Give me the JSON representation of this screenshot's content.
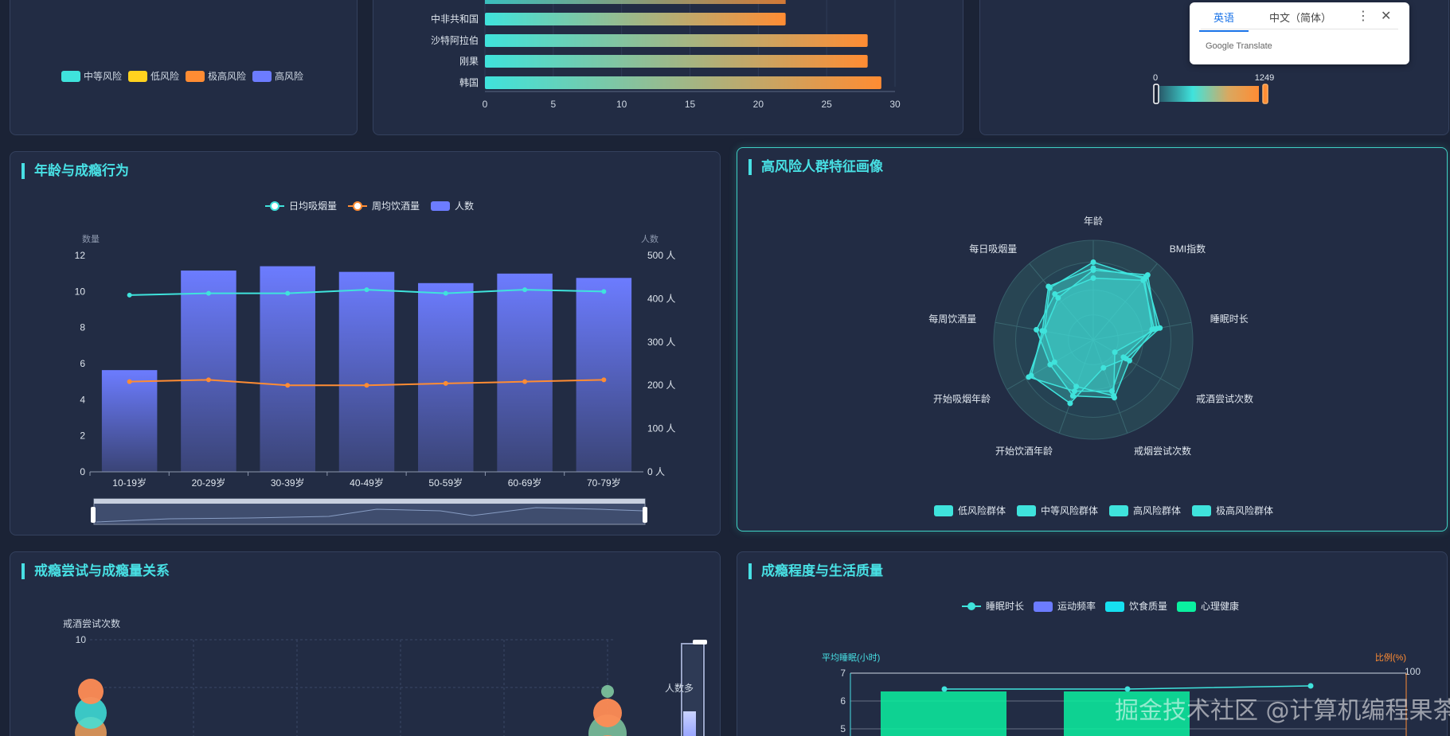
{
  "colors": {
    "teal": "#3fe3dc",
    "orange": "#ff8c33",
    "purple": "#6c7cff",
    "yellow": "#ffd21f",
    "green": "#0af0a0",
    "cyan": "#16e0f0",
    "title": "#48e0e4"
  },
  "risk_panel": {
    "legend": [
      {
        "label": "中等风险",
        "color": "#3fe3dc"
      },
      {
        "label": "低风险",
        "color": "#ffd21f"
      },
      {
        "label": "极高风险",
        "color": "#ff8c33"
      },
      {
        "label": "高风险",
        "color": "#6c7cff"
      }
    ]
  },
  "country_chart": {
    "chart_data": {
      "type": "bar",
      "orientation": "horizontal",
      "categories": [
        "中非共和国",
        "沙特阿拉伯",
        "刚果",
        "韩国"
      ],
      "values": [
        22,
        28,
        28,
        29
      ],
      "xlim": [
        0,
        30
      ],
      "xticks": [
        "0",
        "5",
        "10",
        "15",
        "20",
        "25",
        "30"
      ]
    }
  },
  "map_panel": {
    "visualmap_min": "0",
    "visualmap_max": "1249"
  },
  "translate_popup": {
    "tab_english": "英语",
    "tab_chinese": "中文（简体）",
    "more_icon": "⋮",
    "close_icon": "✕",
    "brand": "Google Translate"
  },
  "age_panel": {
    "title": "年龄与成瘾行为",
    "chart_data": {
      "type": "bar",
      "categories": [
        "10-19岁",
        "20-29岁",
        "30-39岁",
        "40-49岁",
        "50-59岁",
        "60-69岁",
        "70-79岁"
      ],
      "series": [
        {
          "name": "人数",
          "type": "bar",
          "axis": "right",
          "values": [
            235,
            465,
            475,
            462,
            436,
            458,
            448
          ]
        },
        {
          "name": "日均吸烟量",
          "type": "line",
          "axis": "left",
          "values": [
            9.8,
            9.9,
            9.9,
            10.1,
            9.9,
            10.1,
            10.0
          ]
        },
        {
          "name": "周均饮酒量",
          "type": "line",
          "axis": "left",
          "values": [
            5.0,
            5.1,
            4.8,
            4.8,
            4.9,
            5.0,
            5.1
          ]
        }
      ],
      "ylabel_left": "数量",
      "ylabel_right": "人数",
      "yticks_left": [
        "0",
        "2",
        "4",
        "6",
        "8",
        "10",
        "12"
      ],
      "yticks_right": [
        "0 人",
        "100 人",
        "200 人",
        "300 人",
        "400 人",
        "500 人"
      ],
      "ylim_left": [
        0,
        12
      ],
      "ylim_right": [
        0,
        500
      ],
      "legend_position": "top"
    }
  },
  "radar_panel": {
    "title": "高风险人群特征画像",
    "chart_data": {
      "type": "radar",
      "indicators": [
        "年龄",
        "BMI指数",
        "睡眠时长",
        "戒酒尝试次数",
        "戒烟尝试次数",
        "开始饮酒年龄",
        "开始吸烟年龄",
        "每周饮酒量",
        "每日吸烟量"
      ],
      "series": [
        {
          "name": "低风险群体",
          "values": [
            0.78,
            0.8,
            0.6,
            0.35,
            0.55,
            0.55,
            0.75,
            0.5,
            0.68
          ]
        },
        {
          "name": "中等风险群体",
          "values": [
            0.7,
            0.85,
            0.65,
            0.25,
            0.6,
            0.5,
            0.45,
            0.5,
            0.55
          ]
        },
        {
          "name": "高风险群体",
          "values": [
            0.62,
            0.78,
            0.62,
            0.42,
            0.62,
            0.6,
            0.5,
            0.58,
            0.6
          ]
        },
        {
          "name": "极高风险群体",
          "values": [
            0.72,
            0.82,
            0.68,
            0.38,
            0.3,
            0.68,
            0.72,
            0.52,
            0.7
          ]
        }
      ],
      "legend_position": "bottom"
    }
  },
  "bubble_panel": {
    "title": "戒瘾尝试与成瘾量关系",
    "ylabel": "戒酒尝试次数",
    "ytick_top": "10",
    "visualmap_label": "人数多"
  },
  "quality_panel": {
    "title": "成瘾程度与生活质量",
    "legend": [
      {
        "label": "睡眠时长",
        "color": "#3fe3dc",
        "kind": "line"
      },
      {
        "label": "运动频率",
        "color": "#6c7cff",
        "kind": "rect"
      },
      {
        "label": "饮食质量",
        "color": "#16e0f0",
        "kind": "rect"
      },
      {
        "label": "心理健康",
        "color": "#0af0a0",
        "kind": "rect"
      }
    ],
    "ylabel_left": "平均睡眠(小时)",
    "ylabel_right": "比例(%)",
    "yticks_left": [
      "7",
      "6",
      "5"
    ],
    "ytick_right": "100"
  },
  "watermark": "掘金技术社区 @计算机编程果茶熊"
}
